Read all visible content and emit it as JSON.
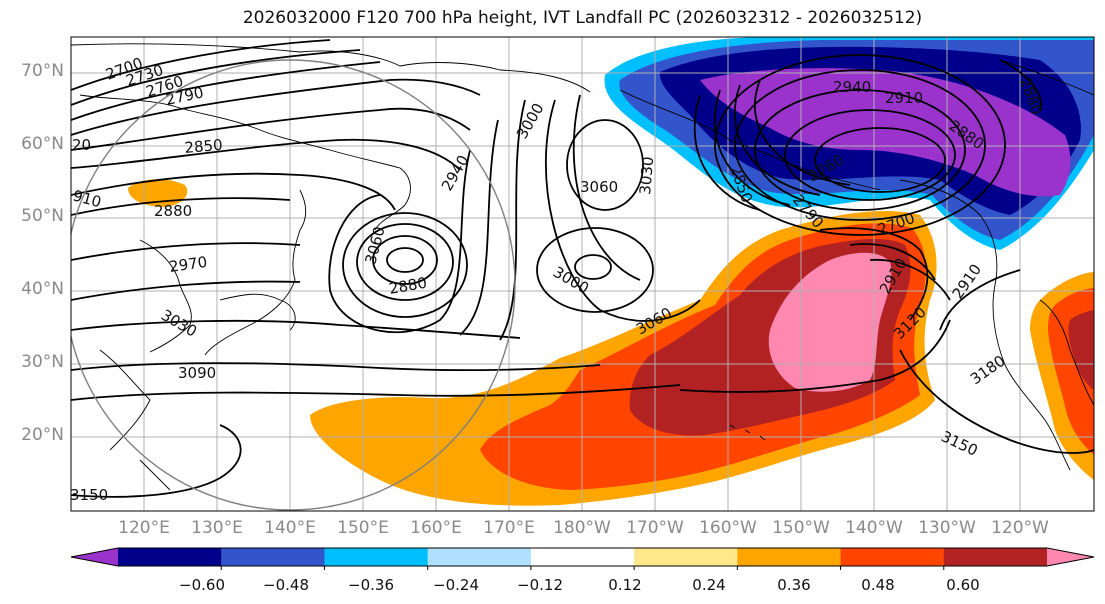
{
  "title": "2026032000 F120 700 hPa height, IVT Landfall PC (2026032312 - 2026032512)",
  "map": {
    "lat_labels": [
      "70°N",
      "60°N",
      "50°N",
      "40°N",
      "30°N",
      "20°N"
    ],
    "lon_labels": [
      "120°E",
      "130°E",
      "140°E",
      "150°E",
      "160°E",
      "170°E",
      "180°W",
      "170°W",
      "160°W",
      "150°W",
      "140°W",
      "130°W",
      "120°W"
    ],
    "contour_labels": [
      "2700",
      "2730",
      "2760",
      "2790",
      "2850",
      "20",
      "910",
      "2880",
      "2970",
      "3030",
      "3090",
      "3150",
      "2940",
      "3000",
      "3060",
      "3030",
      "3060",
      "3000",
      "3060",
      "2880",
      "2910",
      "2940",
      "2910",
      "2880",
      "2850",
      "2790",
      "2760",
      "2700",
      "2910",
      "3120",
      "3180",
      "3150",
      "2880"
    ],
    "colors": {
      "low_strong": "#9933cc",
      "high_strong": "#ff88b0",
      "coastline": "#000000",
      "contour": "#000000"
    }
  },
  "colorbar": {
    "tick_labels": [
      "−0.60",
      "−0.48",
      "−0.36",
      "−0.24",
      "−0.12",
      "0.12",
      "0.24",
      "0.36",
      "0.48",
      "0.60"
    ],
    "colors": [
      "#9933cc",
      "#00008b",
      "#3355cc",
      "#00bfff",
      "#b0e0ff",
      "#ffffff",
      "#ffe88c",
      "#ffa500",
      "#ff4500",
      "#b22222",
      "#ff88b0"
    ]
  }
}
